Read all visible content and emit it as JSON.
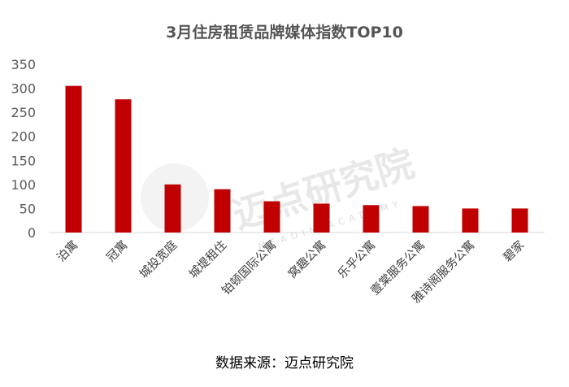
{
  "chart_data": {
    "type": "bar",
    "title": "3月住房租赁品牌媒体指数TOP10",
    "categories": [
      "泊寓",
      "冠寓",
      "城投宽庭",
      "城堤租住",
      "铂顿国际公寓",
      "窝趣公寓",
      "乐乎公寓",
      "壹棠服务公寓",
      "雅诗阁服务公寓",
      "碧家"
    ],
    "values": [
      305,
      277,
      100,
      90,
      65,
      60,
      57,
      55,
      50,
      50
    ],
    "ylim": [
      0,
      350
    ],
    "yticks": [
      0,
      50,
      100,
      150,
      200,
      250,
      300,
      350
    ],
    "grid": false,
    "legend": "none",
    "bar_color": "#c00000"
  },
  "source": "数据来源：迈点研究院",
  "watermark": {
    "text": "迈点研究院",
    "sub": "MEADIN ACADEMY"
  }
}
